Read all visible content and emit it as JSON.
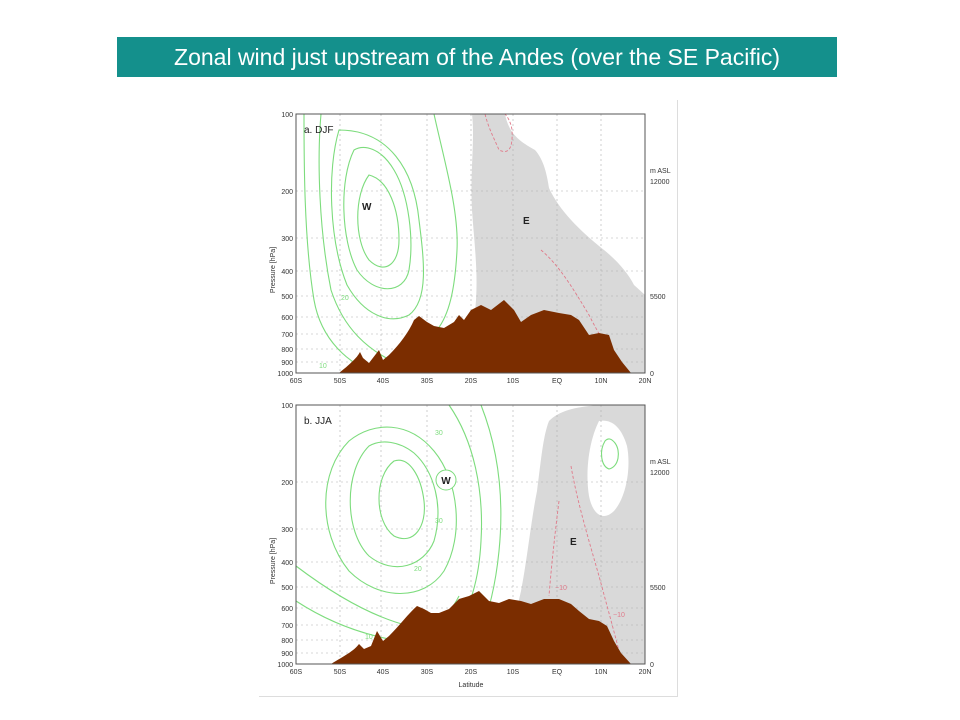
{
  "title": "Zonal wind just upstream of the Andes (over the SE Pacific)",
  "colors": {
    "banner": "#14908c",
    "banner_text": "#ffffff",
    "terrain": "#7b2d00",
    "easterly_shading": "#d9d9d9",
    "westerly_contour": "#7ddc7d",
    "easterly_contour": "#e07a8a",
    "grid": "#b0b0b0"
  },
  "panels": [
    {
      "label": "a. DJF",
      "region_w": "W",
      "region_e": "E",
      "contour_labels": [
        "20",
        "10"
      ],
      "y_ticks": [
        "100",
        "200",
        "300",
        "400",
        "500",
        "600",
        "700",
        "800",
        "900",
        "1000"
      ],
      "x_ticks": [
        "60S",
        "50S",
        "40S",
        "30S",
        "20S",
        "10S",
        "EQ",
        "10N",
        "20N"
      ],
      "right_axis": {
        "unit": "m ASL",
        "ticks": [
          "12000",
          "5500",
          "0"
        ]
      },
      "y_axis_label": "Pressure [hPa]",
      "x_axis_label": ""
    },
    {
      "label": "b. JJA",
      "region_w": "W",
      "region_e": "E",
      "contour_labels": [
        "30",
        "30",
        "20",
        "10",
        "−10",
        "−10"
      ],
      "y_ticks": [
        "100",
        "200",
        "300",
        "400",
        "500",
        "600",
        "700",
        "800",
        "900",
        "1000"
      ],
      "x_ticks": [
        "60S",
        "50S",
        "40S",
        "30S",
        "20S",
        "10S",
        "EQ",
        "10N",
        "20N"
      ],
      "right_axis": {
        "unit": "m ASL",
        "ticks": [
          "12000",
          "5500",
          "0"
        ]
      },
      "y_axis_label": "Pressure [hPa]",
      "x_axis_label": "Latitude"
    }
  ]
}
